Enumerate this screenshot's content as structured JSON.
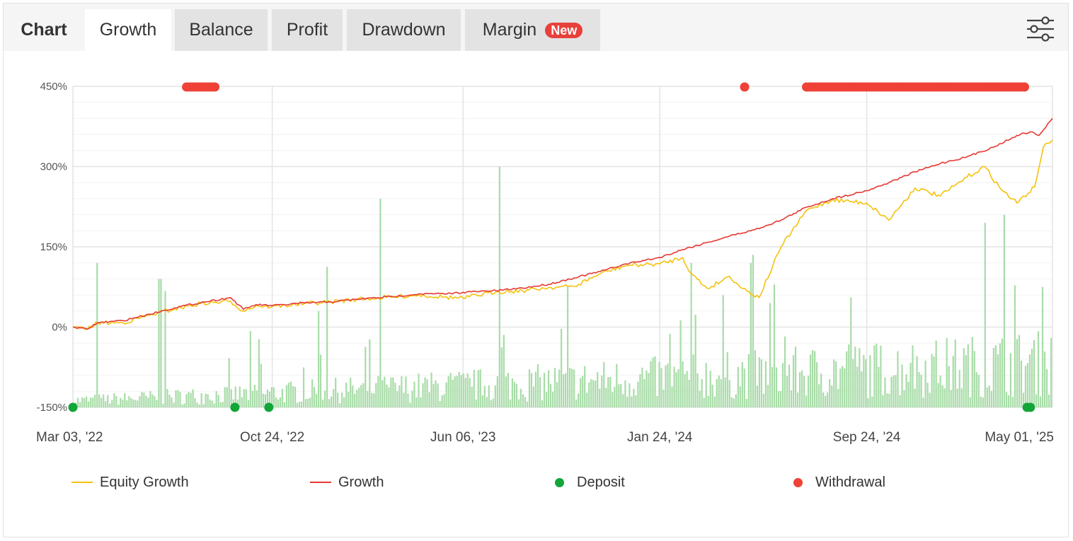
{
  "tabs": {
    "chart_label": "Chart",
    "growth": "Growth",
    "balance": "Balance",
    "profit": "Profit",
    "drawdown": "Drawdown",
    "margin": "Margin",
    "margin_badge": "New"
  },
  "icons": {
    "settings": "sliders-icon"
  },
  "colors": {
    "equity": "#f4c20d",
    "growth": "#e53935",
    "deposit": "#12a537",
    "withdrawal": "#ef4136",
    "bars": "#a8dca8",
    "badge": "#e8403a"
  },
  "legend": {
    "equity": "Equity Growth",
    "growth": "Growth",
    "deposit": "Deposit",
    "withdrawal": "Withdrawal"
  },
  "chart_data": {
    "type": "line",
    "ylim": [
      -150,
      450
    ],
    "y_ticks": [
      "450%",
      "300%",
      "150%",
      "0%",
      "-150%"
    ],
    "y_tick_values": [
      450,
      300,
      150,
      0,
      -150
    ],
    "x_range": [
      "2022-03-03",
      "2025-05-01"
    ],
    "x_ticks": [
      "Mar 03, '22",
      "Oct 24, '22",
      "Jun 06, '23",
      "Jan 24, '24",
      "Sep 24, '24",
      "May 01, '25"
    ],
    "x_tick_dates": [
      "2022-03-03",
      "2022-10-24",
      "2023-06-06",
      "2024-01-24",
      "2024-09-24",
      "2025-05-01"
    ],
    "grid": true,
    "legend_position": "bottom",
    "series": [
      {
        "name": "Growth",
        "points": [
          [
            "2022-03-03",
            0
          ],
          [
            "2022-03-20",
            -4
          ],
          [
            "2022-04-01",
            8
          ],
          [
            "2022-05-01",
            12
          ],
          [
            "2022-06-01",
            24
          ],
          [
            "2022-07-01",
            36
          ],
          [
            "2022-08-01",
            46
          ],
          [
            "2022-09-05",
            55
          ],
          [
            "2022-09-20",
            33
          ],
          [
            "2022-10-05",
            42
          ],
          [
            "2022-10-24",
            40
          ],
          [
            "2022-12-01",
            45
          ],
          [
            "2023-01-01",
            47
          ],
          [
            "2023-02-01",
            52
          ],
          [
            "2023-03-15",
            57
          ],
          [
            "2023-04-15",
            62
          ],
          [
            "2023-05-15",
            62
          ],
          [
            "2023-06-06",
            65
          ],
          [
            "2023-07-15",
            68
          ],
          [
            "2023-08-15",
            73
          ],
          [
            "2023-09-15",
            80
          ],
          [
            "2023-10-15",
            92
          ],
          [
            "2023-11-15",
            104
          ],
          [
            "2023-12-15",
            118
          ],
          [
            "2024-01-24",
            130
          ],
          [
            "2024-02-20",
            145
          ],
          [
            "2024-03-20",
            158
          ],
          [
            "2024-04-15",
            170
          ],
          [
            "2024-05-15",
            182
          ],
          [
            "2024-06-15",
            200
          ],
          [
            "2024-07-15",
            224
          ],
          [
            "2024-08-15",
            240
          ],
          [
            "2024-09-24",
            255
          ],
          [
            "2024-10-20",
            270
          ],
          [
            "2024-11-20",
            290
          ],
          [
            "2024-12-20",
            306
          ],
          [
            "2025-01-20",
            318
          ],
          [
            "2025-02-20",
            336
          ],
          [
            "2025-03-20",
            358
          ],
          [
            "2025-04-05",
            365
          ],
          [
            "2025-04-15",
            358
          ],
          [
            "2025-05-01",
            390
          ]
        ]
      },
      {
        "name": "Equity Growth",
        "points": [
          [
            "2022-03-03",
            0
          ],
          [
            "2022-03-20",
            -4
          ],
          [
            "2022-04-01",
            8
          ],
          [
            "2022-05-01",
            8
          ],
          [
            "2022-06-01",
            22
          ],
          [
            "2022-07-01",
            34
          ],
          [
            "2022-08-01",
            44
          ],
          [
            "2022-09-05",
            48
          ],
          [
            "2022-09-20",
            30
          ],
          [
            "2022-10-05",
            40
          ],
          [
            "2022-10-24",
            38
          ],
          [
            "2022-12-01",
            44
          ],
          [
            "2023-01-01",
            47
          ],
          [
            "2023-02-01",
            52
          ],
          [
            "2023-03-15",
            56
          ],
          [
            "2023-04-15",
            60
          ],
          [
            "2023-05-15",
            56
          ],
          [
            "2023-06-06",
            54
          ],
          [
            "2023-07-15",
            66
          ],
          [
            "2023-08-15",
            68
          ],
          [
            "2023-09-15",
            74
          ],
          [
            "2023-10-15",
            76
          ],
          [
            "2023-11-15",
            100
          ],
          [
            "2023-12-15",
            115
          ],
          [
            "2024-01-24",
            118
          ],
          [
            "2024-02-20",
            130
          ],
          [
            "2024-03-01",
            100
          ],
          [
            "2024-03-20",
            72
          ],
          [
            "2024-04-15",
            95
          ],
          [
            "2024-05-01",
            72
          ],
          [
            "2024-05-20",
            55
          ],
          [
            "2024-06-15",
            150
          ],
          [
            "2024-07-15",
            218
          ],
          [
            "2024-08-15",
            238
          ],
          [
            "2024-09-24",
            232
          ],
          [
            "2024-10-20",
            200
          ],
          [
            "2024-11-20",
            260
          ],
          [
            "2024-12-20",
            245
          ],
          [
            "2025-01-20",
            280
          ],
          [
            "2025-02-10",
            300
          ],
          [
            "2025-03-01",
            258
          ],
          [
            "2025-03-20",
            232
          ],
          [
            "2025-04-10",
            262
          ],
          [
            "2025-04-20",
            335
          ],
          [
            "2025-05-01",
            350
          ]
        ]
      }
    ],
    "deposits": [
      "2022-03-03",
      "2022-09-10",
      "2022-10-20",
      "2025-04-01",
      "2025-04-05"
    ],
    "withdrawals": [
      [
        "2022-07-15",
        "2022-08-20"
      ],
      [
        "2024-05-03",
        "2024-05-03"
      ],
      [
        "2024-07-15",
        "2025-04-01"
      ]
    ],
    "bars_ylim": [
      0,
      400
    ]
  }
}
